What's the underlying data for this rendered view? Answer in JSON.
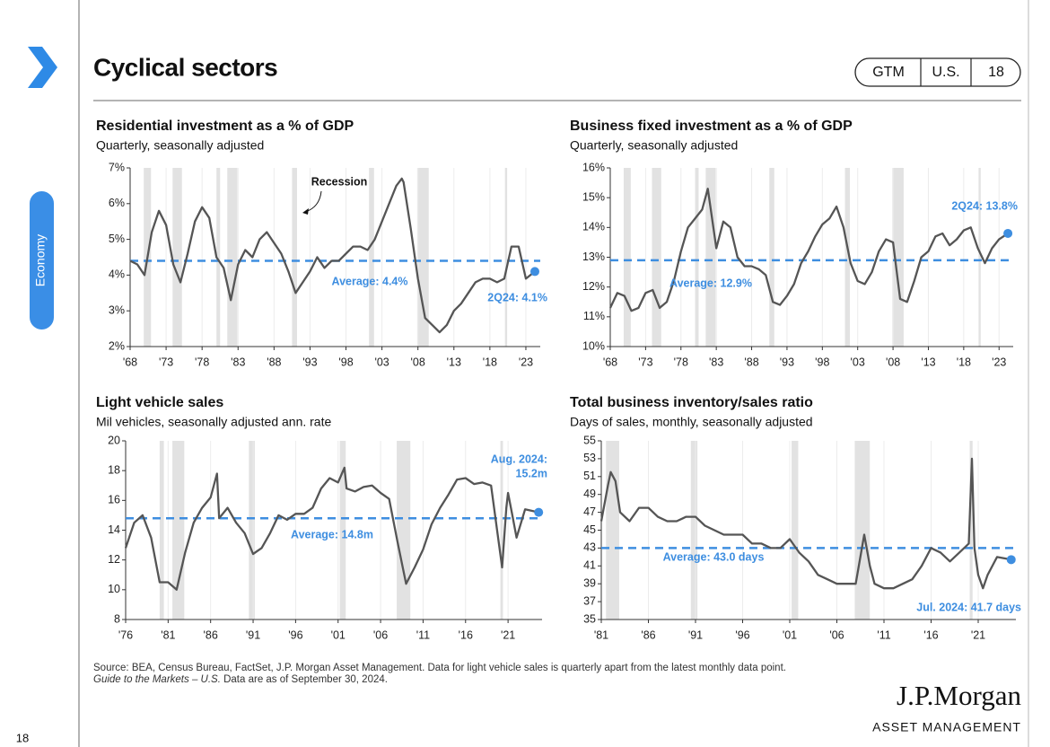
{
  "header": {
    "title": "Cyclical sectors",
    "badges": [
      "GTM",
      "U.S.",
      "18"
    ]
  },
  "sidebar": {
    "section": "Economy"
  },
  "chart_data": [
    {
      "type": "line",
      "title": "Residential investment as a % of GDP",
      "subtitle": "Quarterly, seasonally adjusted",
      "x": [
        1968,
        1969,
        1970,
        1971,
        1972,
        1973,
        1974,
        1975,
        1976,
        1977,
        1978,
        1979,
        1980,
        1981,
        1982,
        1983,
        1984,
        1985,
        1986,
        1987,
        1988,
        1989,
        1990,
        1991,
        1992,
        1993,
        1994,
        1995,
        1996,
        1997,
        1998,
        1999,
        2000,
        2001,
        2002,
        2003,
        2004,
        2005,
        2005.75,
        2006,
        2007,
        2008,
        2009,
        2010,
        2011,
        2012,
        2013,
        2014,
        2015,
        2016,
        2017,
        2018,
        2019,
        2020,
        2021,
        2022,
        2023,
        2024.25
      ],
      "values": [
        4.4,
        4.3,
        4.0,
        5.2,
        5.8,
        5.4,
        4.3,
        3.8,
        4.6,
        5.5,
        5.9,
        5.6,
        4.5,
        4.2,
        3.3,
        4.3,
        4.7,
        4.5,
        5.0,
        5.2,
        4.9,
        4.6,
        4.1,
        3.5,
        3.8,
        4.1,
        4.5,
        4.2,
        4.4,
        4.4,
        4.6,
        4.8,
        4.8,
        4.7,
        5.0,
        5.5,
        6.0,
        6.5,
        6.7,
        6.6,
        5.3,
        3.9,
        2.8,
        2.6,
        2.4,
        2.6,
        3.0,
        3.2,
        3.5,
        3.8,
        3.9,
        3.9,
        3.8,
        3.9,
        4.8,
        4.8,
        3.9,
        4.1
      ],
      "color": "#555555",
      "average": 4.4,
      "average_label": "Average: 4.4%",
      "average_color": "#3e8ee0",
      "end_label": [
        "2Q24: 4.1%"
      ],
      "recession_label": "Recession",
      "xlim": [
        1968,
        2025
      ],
      "ylim": [
        2,
        7
      ],
      "xticks": [
        {
          "value": 1968,
          "label": "'68"
        },
        {
          "value": 1973,
          "label": "'73"
        },
        {
          "value": 1978,
          "label": "'78"
        },
        {
          "value": 1983,
          "label": "'83"
        },
        {
          "value": 1988,
          "label": "'88"
        },
        {
          "value": 1993,
          "label": "'93"
        },
        {
          "value": 1998,
          "label": "'98"
        },
        {
          "value": 2003,
          "label": "'03"
        },
        {
          "value": 2008,
          "label": "'08"
        },
        {
          "value": 2013,
          "label": "'13"
        },
        {
          "value": 2018,
          "label": "'18"
        },
        {
          "value": 2023,
          "label": "'23"
        }
      ],
      "yticks": [
        {
          "value": 2,
          "label": "2%"
        },
        {
          "value": 3,
          "label": "3%"
        },
        {
          "value": 4,
          "label": "4%"
        },
        {
          "value": 5,
          "label": "5%"
        },
        {
          "value": 6,
          "label": "6%"
        },
        {
          "value": 7,
          "label": "7%"
        }
      ],
      "grid": true,
      "recessions": [
        [
          1969.9,
          1970.9
        ],
        [
          1973.9,
          1975.2
        ],
        [
          1980.0,
          1980.5
        ],
        [
          1981.5,
          1982.9
        ],
        [
          1990.5,
          1991.2
        ],
        [
          2001.2,
          2001.9
        ],
        [
          2007.9,
          2009.5
        ],
        [
          2020.1,
          2020.4
        ]
      ]
    },
    {
      "type": "line",
      "title": "Business fixed investment as a % of GDP",
      "subtitle": "Quarterly, seasonally adjusted",
      "x": [
        1968,
        1969,
        1970,
        1971,
        1972,
        1973,
        1974,
        1975,
        1976,
        1977,
        1978,
        1979,
        1980,
        1981,
        1981.8,
        1983,
        1984,
        1985,
        1986,
        1987,
        1988,
        1989,
        1990,
        1991,
        1992,
        1993,
        1994,
        1995,
        1996,
        1997,
        1998,
        1999,
        2000,
        2001,
        2002,
        2003,
        2004,
        2005,
        2006,
        2007,
        2008,
        2009,
        2010,
        2011,
        2012,
        2013,
        2014,
        2015,
        2016,
        2017,
        2018,
        2019,
        2020,
        2021,
        2022,
        2023,
        2024.25
      ],
      "values": [
        11.3,
        11.8,
        11.7,
        11.2,
        11.3,
        11.8,
        11.9,
        11.3,
        11.5,
        12.2,
        13.2,
        14.0,
        14.3,
        14.6,
        15.3,
        13.3,
        14.2,
        14.0,
        13.0,
        12.7,
        12.7,
        12.6,
        12.4,
        11.5,
        11.4,
        11.7,
        12.1,
        12.8,
        13.2,
        13.7,
        14.1,
        14.3,
        14.7,
        14.0,
        12.8,
        12.2,
        12.1,
        12.5,
        13.2,
        13.6,
        13.5,
        11.6,
        11.5,
        12.2,
        13.0,
        13.2,
        13.7,
        13.8,
        13.4,
        13.6,
        13.9,
        14.0,
        13.3,
        12.8,
        13.3,
        13.6,
        13.8
      ],
      "color": "#555555",
      "average": 12.9,
      "average_label": "Average: 12.9%",
      "average_color": "#3e8ee0",
      "end_label": [
        "2Q24: 13.8%"
      ],
      "xlim": [
        1968,
        2025
      ],
      "ylim": [
        10,
        16
      ],
      "xticks": [
        {
          "value": 1968,
          "label": "'68"
        },
        {
          "value": 1973,
          "label": "'73"
        },
        {
          "value": 1978,
          "label": "'78"
        },
        {
          "value": 1983,
          "label": "'83"
        },
        {
          "value": 1988,
          "label": "'88"
        },
        {
          "value": 1993,
          "label": "'93"
        },
        {
          "value": 1998,
          "label": "'98"
        },
        {
          "value": 2003,
          "label": "'03"
        },
        {
          "value": 2008,
          "label": "'08"
        },
        {
          "value": 2013,
          "label": "'13"
        },
        {
          "value": 2018,
          "label": "'18"
        },
        {
          "value": 2023,
          "label": "'23"
        }
      ],
      "yticks": [
        {
          "value": 10,
          "label": "10%"
        },
        {
          "value": 11,
          "label": "11%"
        },
        {
          "value": 12,
          "label": "12%"
        },
        {
          "value": 13,
          "label": "13%"
        },
        {
          "value": 14,
          "label": "14%"
        },
        {
          "value": 15,
          "label": "15%"
        },
        {
          "value": 16,
          "label": "16%"
        }
      ],
      "grid": true,
      "recessions": [
        [
          1969.9,
          1970.9
        ],
        [
          1973.9,
          1975.2
        ],
        [
          1980.0,
          1980.5
        ],
        [
          1981.5,
          1982.9
        ],
        [
          1990.5,
          1991.2
        ],
        [
          2001.2,
          2001.9
        ],
        [
          2007.9,
          2009.5
        ],
        [
          2020.1,
          2020.4
        ]
      ]
    },
    {
      "type": "line",
      "title": "Light vehicle sales",
      "subtitle": "Mil vehicles, seasonally adjusted ann. rate",
      "x": [
        1976,
        1977,
        1978,
        1979,
        1980,
        1981,
        1982,
        1983,
        1984,
        1985,
        1986,
        1986.75,
        1987,
        1988,
        1989,
        1990,
        1991,
        1992,
        1993,
        1994,
        1995,
        1996,
        1997,
        1998,
        1999,
        2000,
        2001,
        2001.75,
        2002,
        2003,
        2004,
        2005,
        2006,
        2007,
        2008,
        2009,
        2010,
        2011,
        2012,
        2013,
        2014,
        2015,
        2016,
        2017,
        2018,
        2019,
        2020.3,
        2020.8,
        2021,
        2021.5,
        2022,
        2023,
        2024.6
      ],
      "values": [
        12.8,
        14.5,
        15.0,
        13.5,
        10.5,
        10.5,
        10.0,
        12.5,
        14.5,
        15.5,
        16.2,
        17.8,
        14.8,
        15.5,
        14.5,
        13.8,
        12.4,
        12.8,
        13.8,
        15.0,
        14.7,
        15.1,
        15.1,
        15.5,
        16.8,
        17.5,
        17.2,
        18.2,
        16.8,
        16.6,
        16.9,
        17.0,
        16.5,
        16.1,
        13.2,
        10.4,
        11.5,
        12.7,
        14.4,
        15.5,
        16.4,
        17.4,
        17.5,
        17.1,
        17.2,
        17.0,
        11.5,
        15.5,
        16.5,
        15.0,
        13.5,
        15.4,
        15.2
      ],
      "color": "#555555",
      "average": 14.8,
      "average_label": "Average: 14.8m",
      "average_color": "#3e8ee0",
      "end_label": [
        "Aug. 2024:",
        "15.2m"
      ],
      "xlim": [
        1976,
        2025
      ],
      "ylim": [
        8,
        20
      ],
      "xticks": [
        {
          "value": 1976,
          "label": "'76"
        },
        {
          "value": 1981,
          "label": "'81"
        },
        {
          "value": 1986,
          "label": "'86"
        },
        {
          "value": 1991,
          "label": "'91"
        },
        {
          "value": 1996,
          "label": "'96"
        },
        {
          "value": 2001,
          "label": "'01"
        },
        {
          "value": 2006,
          "label": "'06"
        },
        {
          "value": 2011,
          "label": "'11"
        },
        {
          "value": 2016,
          "label": "'16"
        },
        {
          "value": 2021,
          "label": "'21"
        }
      ],
      "yticks": [
        8,
        10,
        12,
        14,
        16,
        18,
        20
      ],
      "grid": true,
      "recessions": [
        [
          1980.0,
          1980.5
        ],
        [
          1981.5,
          1982.9
        ],
        [
          1990.5,
          1991.2
        ],
        [
          2001.2,
          2001.9
        ],
        [
          2007.9,
          2009.5
        ],
        [
          2020.1,
          2020.4
        ]
      ]
    },
    {
      "type": "line",
      "title": "Total business inventory/sales ratio",
      "subtitle": "Days of sales, monthly, seasonally adjusted",
      "x": [
        1981,
        1981.7,
        1982,
        1982.5,
        1983,
        1984,
        1985,
        1986,
        1987,
        1988,
        1989,
        1990,
        1991,
        1992,
        1993,
        1994,
        1995,
        1996,
        1997,
        1998,
        1999,
        2000,
        2001,
        2002,
        2003,
        2004,
        2005,
        2006,
        2007,
        2008,
        2008.9,
        2009.5,
        2010,
        2011,
        2012,
        2013,
        2014,
        2015,
        2016,
        2017,
        2018,
        2019,
        2020.0,
        2020.33,
        2020.6,
        2021,
        2021.5,
        2022,
        2023,
        2024.5
      ],
      "values": [
        46,
        50,
        51.5,
        50.5,
        47,
        46,
        47.5,
        47.5,
        46.5,
        46,
        46,
        46.5,
        46.5,
        45.5,
        45,
        44.5,
        44.5,
        44.5,
        43.5,
        43.5,
        43,
        43,
        44,
        42.5,
        41.5,
        40,
        39.5,
        39,
        39,
        39,
        44.5,
        41,
        39,
        38.5,
        38.5,
        39,
        39.5,
        41,
        43,
        42.5,
        41.5,
        42.5,
        43.5,
        53,
        43,
        40,
        38.5,
        40,
        42,
        41.7
      ],
      "color": "#555555",
      "average": 43.0,
      "average_label": "Average: 43.0 days",
      "average_color": "#3e8ee0",
      "end_label": [
        "Jul. 2024: 41.7 days"
      ],
      "xlim": [
        1981,
        2025
      ],
      "ylim": [
        35,
        55
      ],
      "xticks": [
        {
          "value": 1981,
          "label": "'81"
        },
        {
          "value": 1986,
          "label": "'86"
        },
        {
          "value": 1991,
          "label": "'91"
        },
        {
          "value": 1996,
          "label": "'96"
        },
        {
          "value": 2001,
          "label": "'01"
        },
        {
          "value": 2006,
          "label": "'06"
        },
        {
          "value": 2011,
          "label": "'11"
        },
        {
          "value": 2016,
          "label": "'16"
        },
        {
          "value": 2021,
          "label": "'21"
        }
      ],
      "yticks": [
        35,
        37,
        39,
        41,
        43,
        45,
        47,
        49,
        51,
        53,
        55
      ],
      "grid": true,
      "recessions": [
        [
          1981.5,
          1982.9
        ],
        [
          1990.5,
          1991.2
        ],
        [
          2001.2,
          2001.9
        ],
        [
          2007.9,
          2009.5
        ],
        [
          2020.1,
          2020.4
        ]
      ]
    }
  ],
  "footer": {
    "source": "Source: BEA, Census Bureau, FactSet, J.P. Morgan Asset Management. Data for light vehicle sales is quarterly apart from the latest monthly data point.",
    "guide": "Guide to the Markets – U.S.",
    "asof": "Data are as of September 30, 2024."
  },
  "logo": {
    "name": "J.P.Morgan",
    "sub": "ASSET MANAGEMENT"
  },
  "page_number": "18"
}
